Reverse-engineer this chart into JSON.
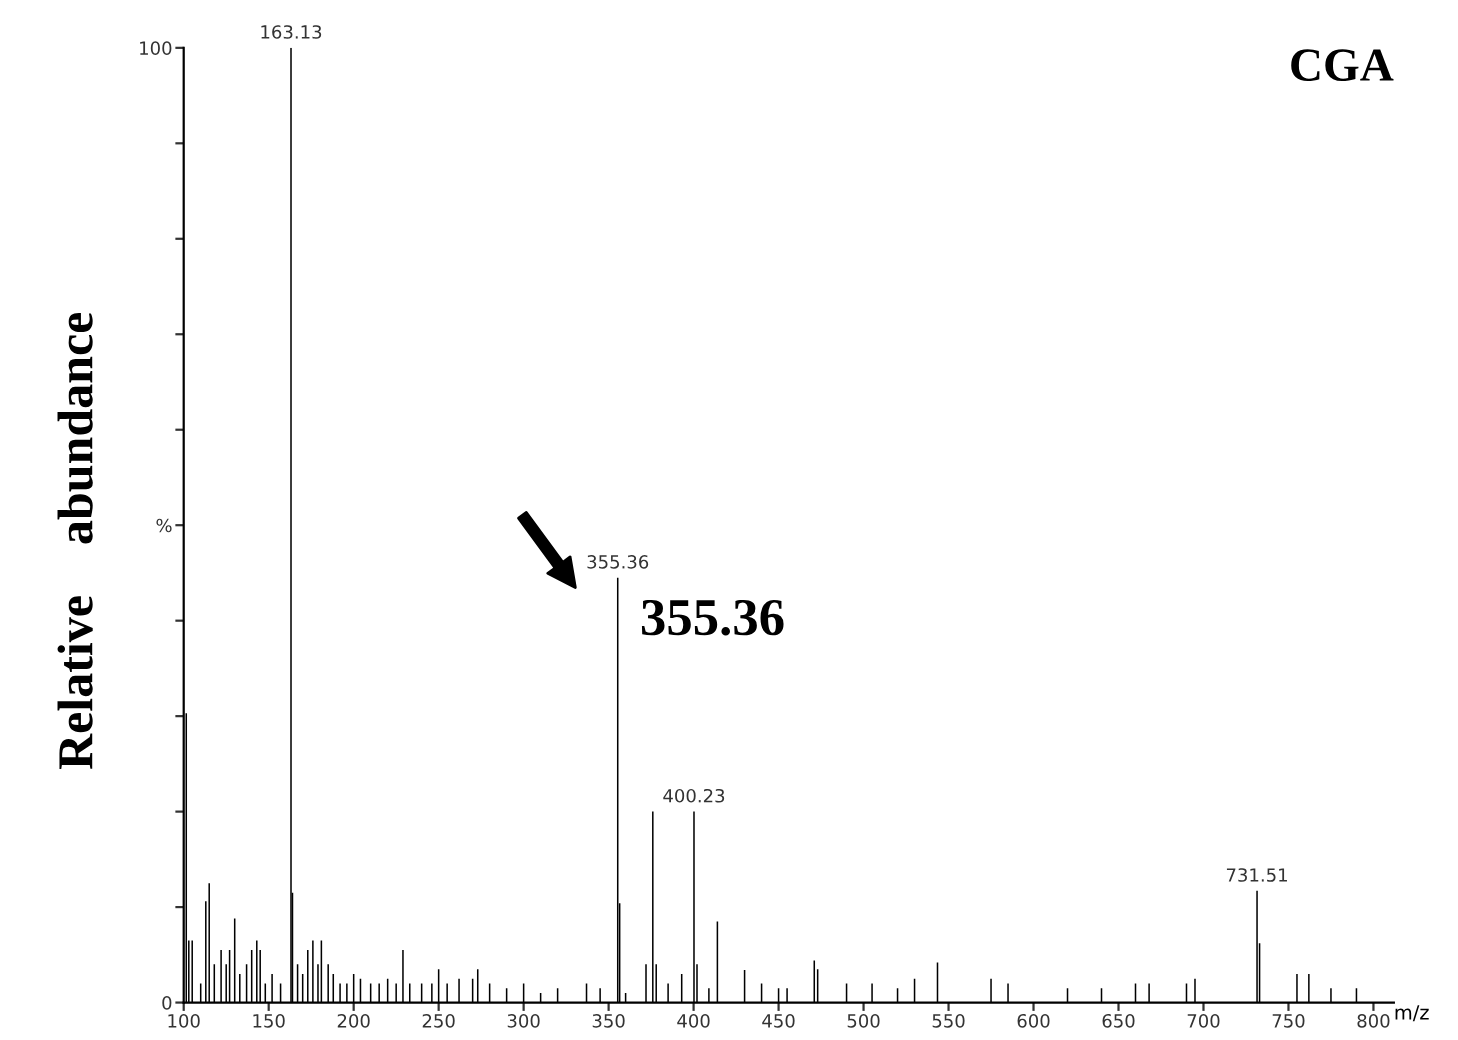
{
  "chart_data": {
    "type": "bar",
    "title": "CGA",
    "xlabel": "m/z",
    "ylabel": "Relative    abundance",
    "x": [
      101.5,
      103,
      105,
      110,
      113,
      115,
      118,
      122,
      125,
      127,
      130,
      133,
      137,
      140,
      143,
      145,
      148,
      152,
      157,
      163.13,
      164,
      167,
      170,
      173,
      176,
      179,
      181,
      185,
      188,
      192,
      196,
      200,
      204,
      210,
      215,
      220,
      225,
      229,
      233,
      240,
      246,
      250,
      255,
      262,
      270,
      273,
      280,
      290,
      300,
      310,
      320,
      337,
      345,
      355.36,
      356.5,
      360,
      372,
      376,
      378,
      385,
      393,
      400.23,
      402,
      409,
      414,
      430,
      440,
      450,
      455,
      471,
      473,
      490,
      505,
      520,
      530,
      543.5,
      575,
      585,
      620,
      640,
      660,
      668,
      690,
      695,
      731.51,
      733,
      755,
      762,
      775,
      790
    ],
    "values": [
      30.3,
      6.5,
      6.5,
      2,
      10.6,
      12.5,
      4,
      5.5,
      4,
      5.5,
      8.8,
      3,
      4,
      5.5,
      6.5,
      5.5,
      2,
      3,
      2,
      100,
      11.5,
      4,
      3,
      5.5,
      6.5,
      4,
      6.5,
      4,
      3,
      2,
      2,
      3,
      2.5,
      2,
      2,
      2.5,
      2,
      5.5,
      2,
      2,
      2,
      3.5,
      2,
      2.5,
      2.5,
      3.5,
      2,
      1.5,
      2,
      1,
      1.5,
      2,
      1.5,
      44.5,
      10.4,
      1,
      4,
      20,
      4,
      2,
      3,
      20,
      4,
      1.5,
      8.5,
      3.4,
      2,
      1.5,
      1.5,
      4.4,
      3.5,
      2,
      2,
      1.5,
      2.5,
      4.2,
      2.5,
      2,
      1.5,
      1.5,
      2,
      2,
      2,
      2.5,
      11.7,
      6.2,
      3,
      3,
      1.5,
      1.5
    ],
    "color": "#000000",
    "xlim": [
      100,
      812
    ],
    "ylim": [
      0,
      100
    ],
    "xticks": [
      100,
      150,
      200,
      250,
      300,
      350,
      400,
      450,
      500,
      550,
      600,
      650,
      700,
      750,
      800
    ],
    "yticks": [
      0,
      {
        "value": 10,
        "label": null
      },
      {
        "value": 20,
        "label": null
      },
      {
        "value": 30,
        "label": null
      },
      {
        "value": 40,
        "label": null
      },
      {
        "value": 50,
        "label": "%"
      },
      {
        "value": 60,
        "label": null
      },
      {
        "value": 70,
        "label": null
      },
      {
        "value": 80,
        "label": null
      },
      {
        "value": 90,
        "label": null
      },
      100
    ],
    "grid": false,
    "annotations": [
      {
        "text": "163.13",
        "x": 163.13,
        "y": 100
      },
      {
        "text": "355.36",
        "x": 355.36,
        "y": 44.5
      },
      {
        "text": "400.23",
        "x": 400.23,
        "y": 20
      },
      {
        "text": "731.51",
        "x": 731.51,
        "y": 11.7
      },
      {
        "text": "355.36",
        "x": 355.36,
        "y": 44.5
      }
    ]
  }
}
